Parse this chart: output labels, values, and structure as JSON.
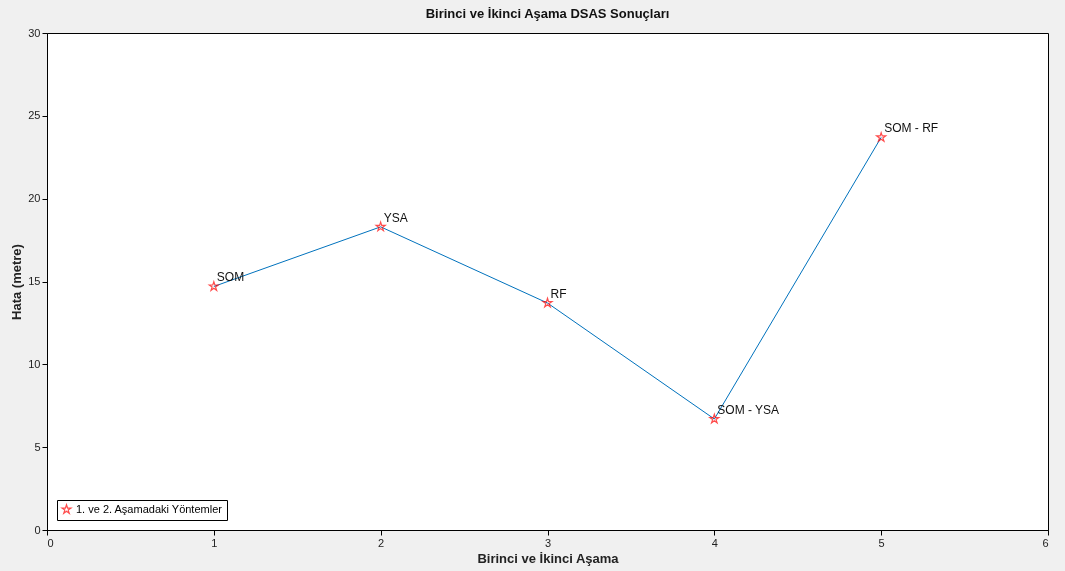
{
  "chart_data": {
    "type": "line",
    "title": "Birinci ve İkinci Aşama DSAS Sonuçları",
    "xlabel": "Birinci ve İkinci Aşama",
    "ylabel": "Hata (metre)",
    "x": [
      1,
      2,
      3,
      4,
      5
    ],
    "series": [
      {
        "name": "1. ve 2. Aşamadaki Yöntemler",
        "color": "#0072bd",
        "colors": [
          "#ff0000",
          "#ff0000",
          "#ff0000",
          "#ff0000",
          "#ff0000"
        ],
        "values": [
          14.7,
          18.3,
          13.7,
          6.7,
          23.7
        ]
      }
    ],
    "annotations": [
      {
        "text": "SOM",
        "x": 1,
        "y": 14.7
      },
      {
        "text": "YSA",
        "x": 2,
        "y": 18.3
      },
      {
        "text": "RF",
        "x": 3,
        "y": 13.7
      },
      {
        "text": "SOM - YSA",
        "x": 4,
        "y": 6.7
      },
      {
        "text": "SOM - RF",
        "x": 5,
        "y": 23.7
      }
    ],
    "xlim": [
      0,
      6
    ],
    "xticks": [
      0,
      1,
      2,
      3,
      4,
      5,
      6
    ],
    "ylim": [
      0,
      30
    ],
    "yticks": [
      0,
      5,
      10,
      15,
      20,
      25,
      30
    ],
    "marker": "star",
    "line_style": "solid",
    "legend": "bottom left",
    "grid": false
  }
}
